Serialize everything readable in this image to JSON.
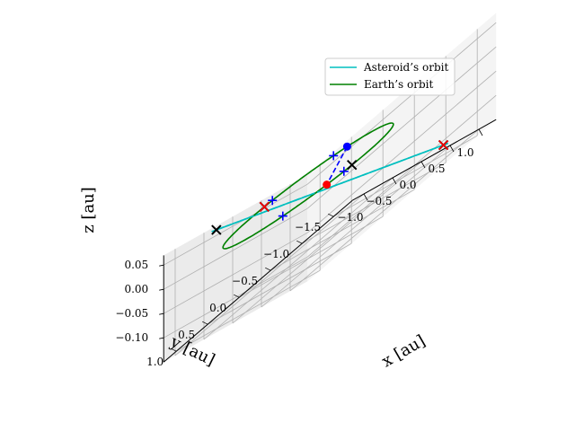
{
  "chart_data": {
    "type": "line3d",
    "title": "",
    "xlabel": "x [au]",
    "ylabel": "y [au]",
    "zlabel": "z [au]",
    "x_ticks": [
      "−1.0",
      "−0.5",
      "0.0",
      "0.5",
      "1.0"
    ],
    "y_ticks": [
      "1.0",
      "0.5",
      "0.0",
      "−0.5",
      "−1.0",
      "−1.5"
    ],
    "z_ticks": [
      "0.05",
      "0.00",
      "−0.05",
      "−0.10"
    ],
    "xlim": [
      -1.2,
      1.3
    ],
    "ylim": [
      -1.8,
      1.2
    ],
    "zlim": [
      -0.15,
      0.07
    ],
    "grid": true,
    "legend_position": "top-right",
    "legend": [
      "Asteroid’s orbit",
      "Earth’s orbit"
    ],
    "series": [
      {
        "name": "Asteroid’s orbit",
        "color": "#00bfbf",
        "ellipse": {
          "center": [
            0.05,
            -0.3,
            -0.04
          ],
          "u": [
            0.52,
            -1.33,
            -0.095
          ],
          "v": [
            0.93,
            0.33,
            0.0
          ]
        }
      },
      {
        "name": "Earth’s orbit",
        "color": "#008000",
        "ellipse": {
          "center": [
            0.0,
            0.0,
            0.0
          ],
          "u": [
            1.0,
            0.0,
            0.0
          ],
          "v": [
            0.0,
            1.0,
            0.0
          ]
        }
      }
    ],
    "lines": [
      {
        "color": "#00bfbf",
        "style": "dashed",
        "points": [
          [
            0.57,
            -1.63,
            -0.135
          ],
          [
            -0.47,
            1.03,
            0.055
          ]
        ]
      },
      {
        "color": "#0000ff",
        "style": "dashed",
        "points": [
          [
            -0.35,
            -0.94,
            0.0
          ],
          [
            0.87,
            0.5,
            0.0
          ]
        ]
      }
    ],
    "points": [
      {
        "marker": "dot",
        "color": "#ff0000",
        "xyz": [
          0.87,
          0.5,
          0.0
        ]
      },
      {
        "marker": "dot",
        "color": "#0000ff",
        "xyz": [
          -0.35,
          -0.94,
          0.0
        ]
      },
      {
        "marker": "x",
        "color": "#000000",
        "xyz": [
          -0.47,
          1.03,
          0.055
        ]
      },
      {
        "marker": "x",
        "color": "#000000",
        "xyz": [
          0.57,
          -1.63,
          -0.135
        ]
      },
      {
        "marker": "x",
        "color": "#000000",
        "xyz": [
          0.98,
          0.2,
          0.0
        ]
      },
      {
        "marker": "x",
        "color": "#000000",
        "xyz": [
          -0.98,
          -0.2,
          0.0
        ]
      },
      {
        "marker": "x",
        "color": "#ff0000",
        "xyz": [
          0.57,
          -1.63,
          -0.135
        ]
      },
      {
        "marker": "x",
        "color": "#ff0000",
        "xyz": [
          -0.98,
          -0.2,
          0.0
        ]
      },
      {
        "marker": "+",
        "color": "#0000ff",
        "xyz": [
          0.95,
          0.3,
          0.0
        ]
      },
      {
        "marker": "+",
        "color": "#0000ff",
        "xyz": [
          0.5,
          0.86,
          0.0
        ]
      },
      {
        "marker": "+",
        "color": "#0000ff",
        "xyz": [
          -0.95,
          -0.3,
          0.0
        ]
      },
      {
        "marker": "+",
        "color": "#0000ff",
        "xyz": [
          -0.5,
          -0.86,
          0.0
        ]
      }
    ]
  }
}
